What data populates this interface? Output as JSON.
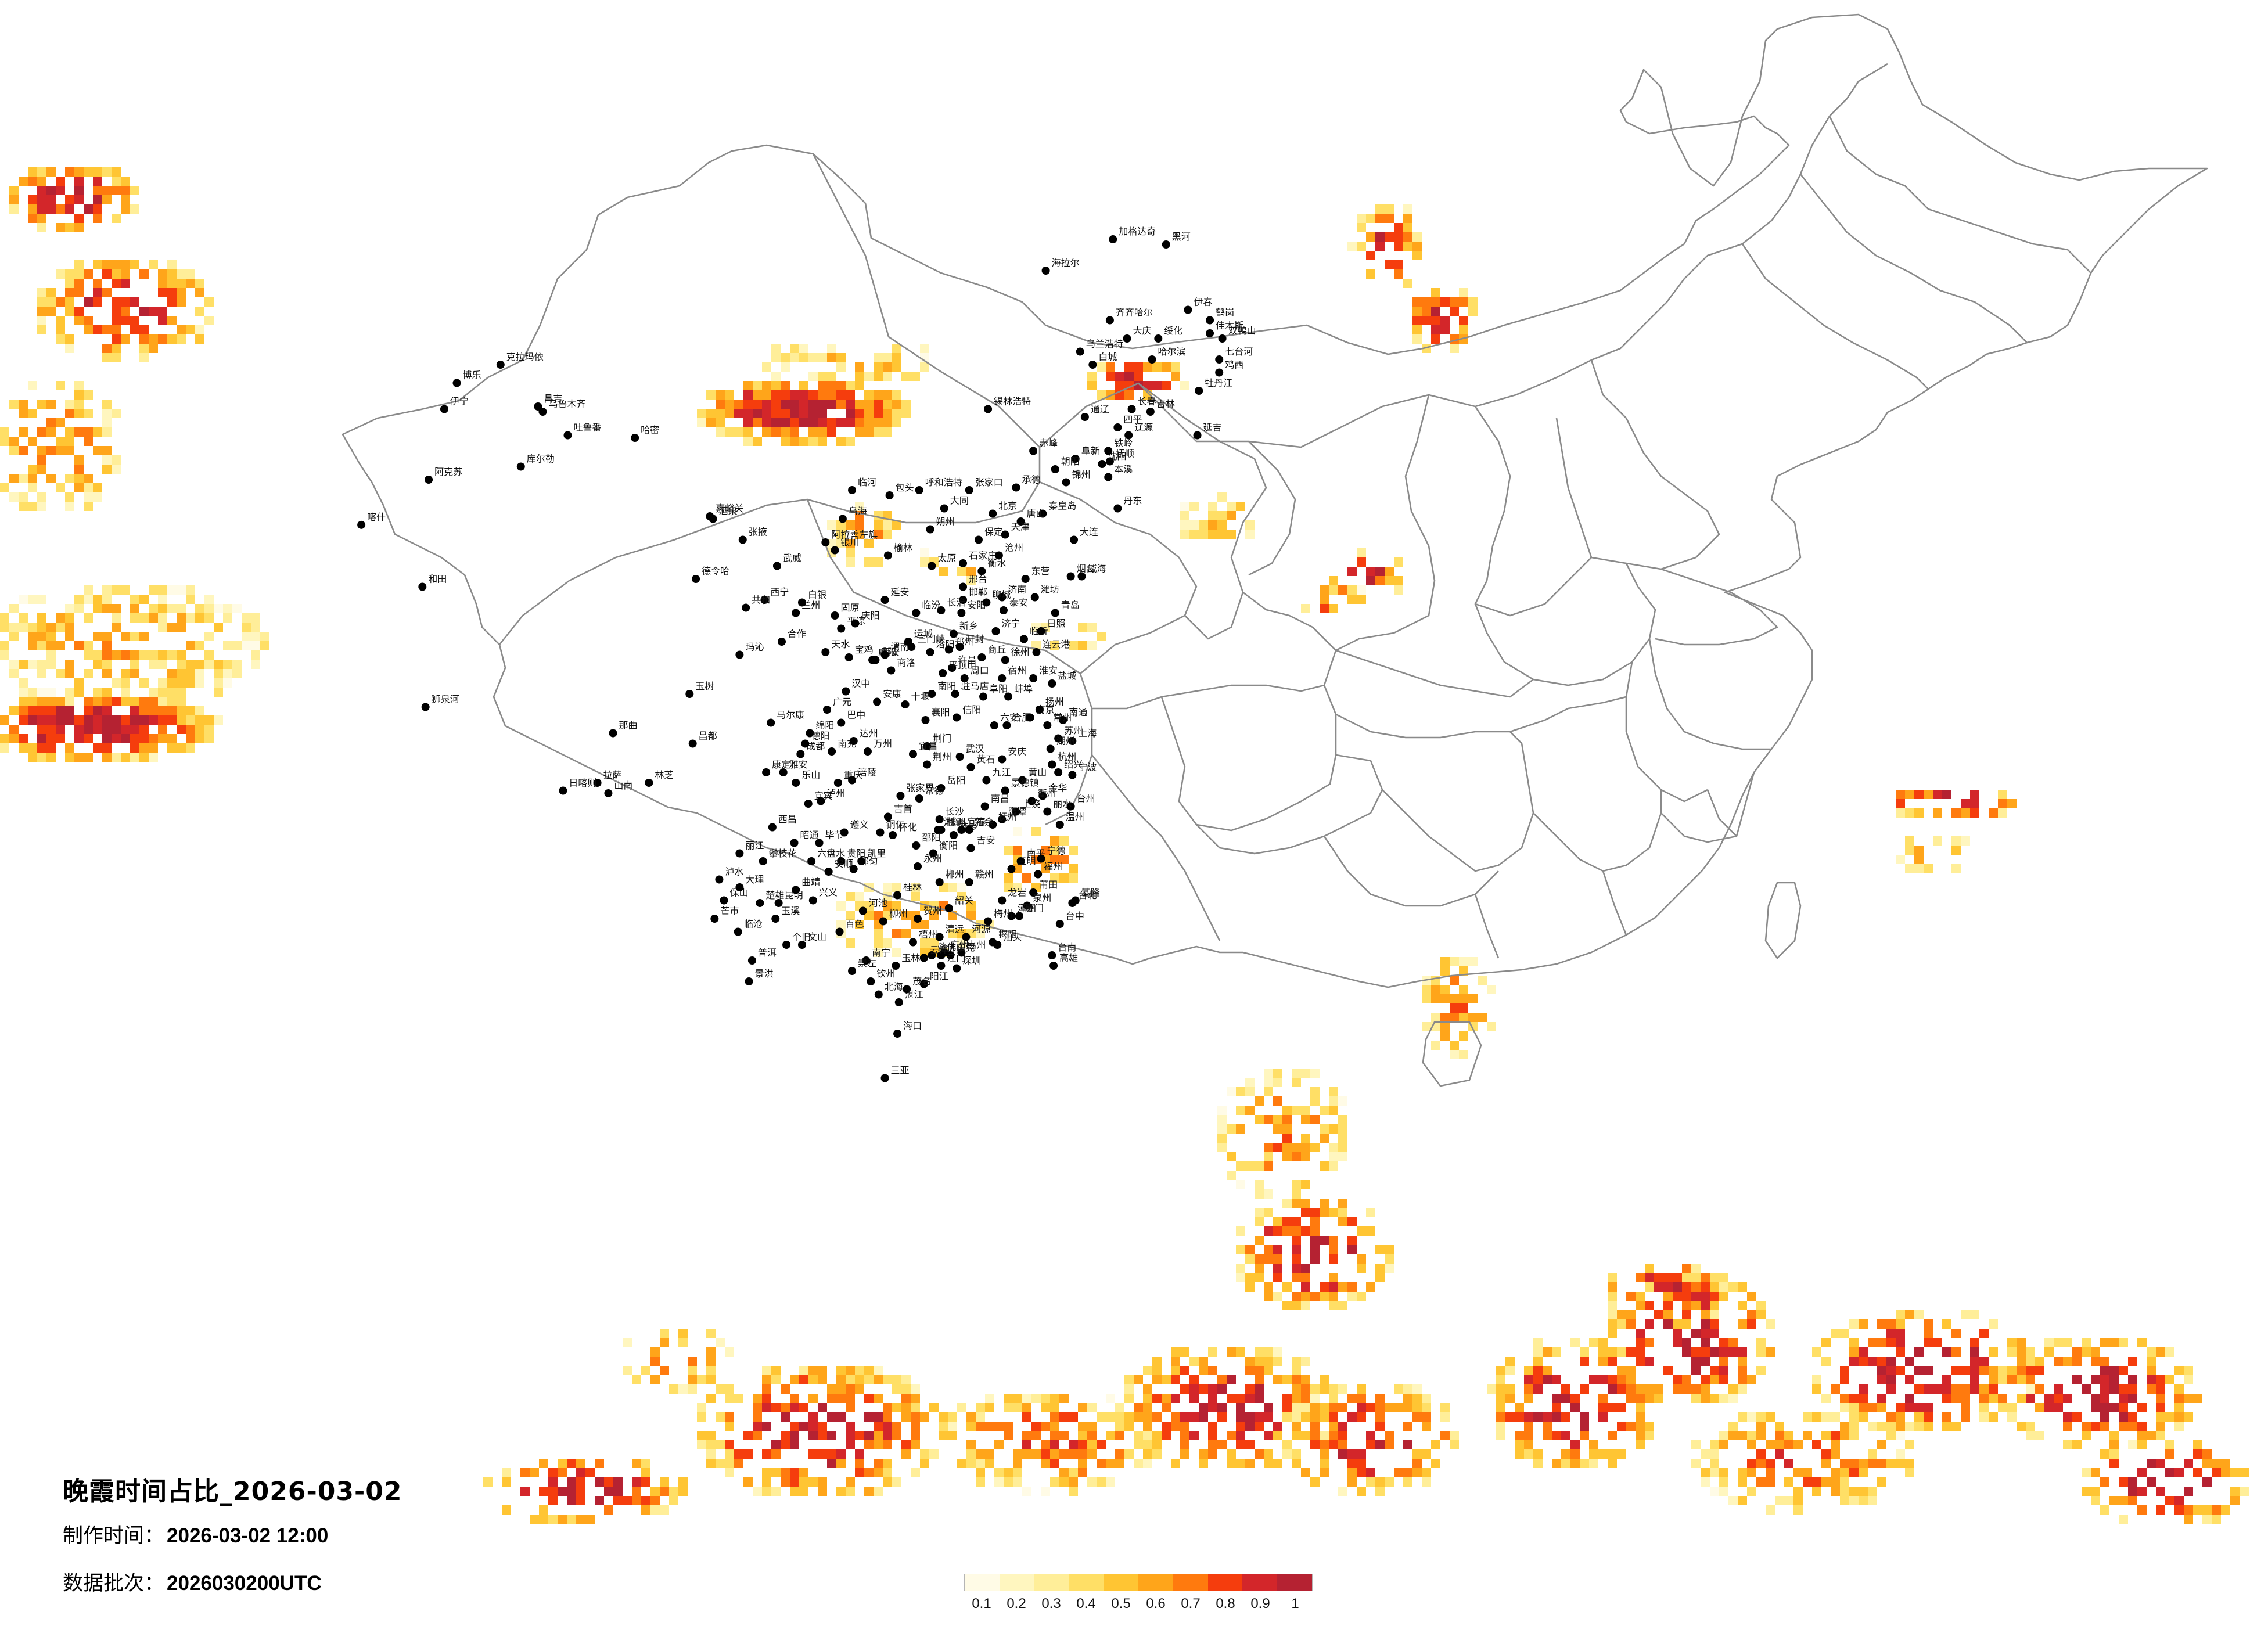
{
  "title": "晚霞时间占比_2026-03-02",
  "made_time_label": "制作时间：",
  "made_time_value": "2026-03-02 12:00",
  "batch_label": "数据批次：",
  "batch_value": "2026030200UTC",
  "legend": {
    "ticks": [
      "0.1",
      "0.2",
      "0.3",
      "0.4",
      "0.5",
      "0.6",
      "0.7",
      "0.8",
      "0.9",
      "1"
    ],
    "colors": [
      "#fffbe6",
      "#fff6bf",
      "#ffee99",
      "#ffdf66",
      "#ffc533",
      "#ffa51a",
      "#ff7a0e",
      "#f53d0d",
      "#d3262a",
      "#b52232"
    ]
  },
  "layers": [
    "sunset-ratio-raster",
    "province-boundaries",
    "city-markers"
  ],
  "cities": [
    {
      "name": "加格达奇",
      "lon": 124.1,
      "lat": 50.4
    },
    {
      "name": "黑河",
      "lon": 127.5,
      "lat": 50.2
    },
    {
      "name": "海拉尔",
      "lon": 119.8,
      "lat": 49.2
    },
    {
      "name": "伊春",
      "lon": 128.9,
      "lat": 47.7
    },
    {
      "name": "鹤岗",
      "lon": 130.3,
      "lat": 47.3
    },
    {
      "name": "佳木斯",
      "lon": 130.3,
      "lat": 46.8
    },
    {
      "name": "齐齐哈尔",
      "lon": 123.9,
      "lat": 47.3
    },
    {
      "name": "双鸭山",
      "lon": 131.1,
      "lat": 46.6
    },
    {
      "name": "绥化",
      "lon": 127.0,
      "lat": 46.6
    },
    {
      "name": "大庆",
      "lon": 125.0,
      "lat": 46.6
    },
    {
      "name": "七台河",
      "lon": 130.9,
      "lat": 45.8
    },
    {
      "name": "鸡西",
      "lon": 130.9,
      "lat": 45.3
    },
    {
      "name": "哈尔滨",
      "lon": 126.6,
      "lat": 45.8
    },
    {
      "name": "乌兰浩特",
      "lon": 122.0,
      "lat": 46.1
    },
    {
      "name": "白城",
      "lon": 122.8,
      "lat": 45.6
    },
    {
      "name": "牡丹江",
      "lon": 129.6,
      "lat": 44.6
    },
    {
      "name": "锡林浩特",
      "lon": 116.1,
      "lat": 43.9
    },
    {
      "name": "长春",
      "lon": 125.3,
      "lat": 43.9
    },
    {
      "name": "吉林",
      "lon": 126.5,
      "lat": 43.8
    },
    {
      "name": "通辽",
      "lon": 122.3,
      "lat": 43.6
    },
    {
      "name": "四平",
      "lon": 124.4,
      "lat": 43.2
    },
    {
      "name": "辽源",
      "lon": 125.1,
      "lat": 42.9
    },
    {
      "name": "延吉",
      "lon": 129.5,
      "lat": 42.9
    },
    {
      "name": "铁岭",
      "lon": 123.8,
      "lat": 42.3
    },
    {
      "name": "抚顺",
      "lon": 123.9,
      "lat": 41.9
    },
    {
      "name": "沈阳",
      "lon": 123.4,
      "lat": 41.8
    },
    {
      "name": "赤峰",
      "lon": 119.0,
      "lat": 42.3
    },
    {
      "name": "阜新",
      "lon": 121.7,
      "lat": 42.0
    },
    {
      "name": "本溪",
      "lon": 123.8,
      "lat": 41.3
    },
    {
      "name": "丹东",
      "lon": 124.4,
      "lat": 40.1
    },
    {
      "name": "锦州",
      "lon": 121.1,
      "lat": 41.1
    },
    {
      "name": "朝阳",
      "lon": 120.4,
      "lat": 41.6
    },
    {
      "name": "承德",
      "lon": 117.9,
      "lat": 40.9
    },
    {
      "name": "张家口",
      "lon": 114.9,
      "lat": 40.8
    },
    {
      "name": "北京",
      "lon": 116.4,
      "lat": 39.9
    },
    {
      "name": "秦皇岛",
      "lon": 119.6,
      "lat": 39.9
    },
    {
      "name": "唐山",
      "lon": 118.2,
      "lat": 39.6
    },
    {
      "name": "天津",
      "lon": 117.2,
      "lat": 39.1
    },
    {
      "name": "大连",
      "lon": 121.6,
      "lat": 38.9
    },
    {
      "name": "呼和浩特",
      "lon": 111.7,
      "lat": 40.8
    },
    {
      "name": "包头",
      "lon": 109.8,
      "lat": 40.6
    },
    {
      "name": "临河",
      "lon": 107.4,
      "lat": 40.8
    },
    {
      "name": "乌海",
      "lon": 106.8,
      "lat": 39.7
    },
    {
      "name": "大同",
      "lon": 113.3,
      "lat": 40.1
    },
    {
      "name": "朔州",
      "lon": 112.4,
      "lat": 39.3
    },
    {
      "name": "保定",
      "lon": 115.5,
      "lat": 38.9
    },
    {
      "name": "石家庄",
      "lon": 114.5,
      "lat": 38.0
    },
    {
      "name": "太原",
      "lon": 112.5,
      "lat": 37.9
    },
    {
      "name": "衡水",
      "lon": 115.7,
      "lat": 37.7
    },
    {
      "name": "沧州",
      "lon": 116.8,
      "lat": 38.3
    },
    {
      "name": "东营",
      "lon": 118.5,
      "lat": 37.4
    },
    {
      "name": "烟台",
      "lon": 121.4,
      "lat": 37.5
    },
    {
      "name": "威海",
      "lon": 122.1,
      "lat": 37.5
    },
    {
      "name": "潍坊",
      "lon": 119.1,
      "lat": 36.7
    },
    {
      "name": "济南",
      "lon": 117.0,
      "lat": 36.7
    },
    {
      "name": "青岛",
      "lon": 120.4,
      "lat": 36.1
    },
    {
      "name": "邢台",
      "lon": 114.5,
      "lat": 37.1
    },
    {
      "name": "邯郸",
      "lon": 114.5,
      "lat": 36.6
    },
    {
      "name": "长治",
      "lon": 113.1,
      "lat": 36.2
    },
    {
      "name": "临汾",
      "lon": 111.5,
      "lat": 36.1
    },
    {
      "name": "延安",
      "lon": 109.5,
      "lat": 36.6
    },
    {
      "name": "榆林",
      "lon": 109.7,
      "lat": 38.3
    },
    {
      "name": "银川",
      "lon": 106.3,
      "lat": 38.5
    },
    {
      "name": "阿拉善左旗",
      "lon": 105.7,
      "lat": 38.8
    },
    {
      "name": "武威",
      "lon": 102.6,
      "lat": 37.9
    },
    {
      "name": "张掖",
      "lon": 100.4,
      "lat": 38.9
    },
    {
      "name": "酒泉",
      "lon": 98.5,
      "lat": 39.7
    },
    {
      "name": "嘉峪关",
      "lon": 98.3,
      "lat": 39.8
    },
    {
      "name": "西宁",
      "lon": 101.8,
      "lat": 36.6
    },
    {
      "name": "兰州",
      "lon": 103.8,
      "lat": 36.1
    },
    {
      "name": "白银",
      "lon": 104.2,
      "lat": 36.5
    },
    {
      "name": "固原",
      "lon": 106.3,
      "lat": 36.0
    },
    {
      "name": "平凉",
      "lon": 106.7,
      "lat": 35.5
    },
    {
      "name": "庆阳",
      "lon": 107.6,
      "lat": 35.7
    },
    {
      "name": "天水",
      "lon": 105.7,
      "lat": 34.6
    },
    {
      "name": "宝鸡",
      "lon": 107.2,
      "lat": 34.4
    },
    {
      "name": "咸阳",
      "lon": 108.7,
      "lat": 34.3
    },
    {
      "name": "西安",
      "lon": 108.9,
      "lat": 34.3
    },
    {
      "name": "渭南",
      "lon": 109.5,
      "lat": 34.5
    },
    {
      "name": "运城",
      "lon": 111.0,
      "lat": 35.0
    },
    {
      "name": "三门峡",
      "lon": 111.2,
      "lat": 34.8
    },
    {
      "name": "洛阳",
      "lon": 112.4,
      "lat": 34.6
    },
    {
      "name": "郑州",
      "lon": 113.6,
      "lat": 34.7
    },
    {
      "name": "开封",
      "lon": 114.3,
      "lat": 34.8
    },
    {
      "name": "新乡",
      "lon": 113.9,
      "lat": 35.3
    },
    {
      "name": "安阳",
      "lon": 114.4,
      "lat": 36.1
    },
    {
      "name": "聊城",
      "lon": 116.0,
      "lat": 36.5
    },
    {
      "name": "泰安",
      "lon": 117.1,
      "lat": 36.2
    },
    {
      "name": "济宁",
      "lon": 116.6,
      "lat": 35.4
    },
    {
      "name": "临沂",
      "lon": 118.4,
      "lat": 35.1
    },
    {
      "name": "日照",
      "lon": 119.5,
      "lat": 35.4
    },
    {
      "name": "连云港",
      "lon": 119.2,
      "lat": 34.6
    },
    {
      "name": "徐州",
      "lon": 117.2,
      "lat": 34.3
    },
    {
      "name": "商丘",
      "lon": 115.7,
      "lat": 34.4
    },
    {
      "name": "许昌",
      "lon": 113.8,
      "lat": 34.0
    },
    {
      "name": "平顶山",
      "lon": 113.2,
      "lat": 33.8
    },
    {
      "name": "周口",
      "lon": 114.6,
      "lat": 33.6
    },
    {
      "name": "驻马店",
      "lon": 114.0,
      "lat": 33.0
    },
    {
      "name": "南阳",
      "lon": 112.5,
      "lat": 33.0
    },
    {
      "name": "阜阳",
      "lon": 115.8,
      "lat": 32.9
    },
    {
      "name": "宿州",
      "lon": 117.0,
      "lat": 33.6
    },
    {
      "name": "淮安",
      "lon": 119.0,
      "lat": 33.6
    },
    {
      "name": "盐城",
      "lon": 120.2,
      "lat": 33.4
    },
    {
      "name": "蚌埠",
      "lon": 117.4,
      "lat": 32.9
    },
    {
      "name": "信阳",
      "lon": 114.1,
      "lat": 32.1
    },
    {
      "name": "六安",
      "lon": 116.5,
      "lat": 31.8
    },
    {
      "name": "合肥",
      "lon": 117.3,
      "lat": 31.8
    },
    {
      "name": "南京",
      "lon": 118.8,
      "lat": 32.1
    },
    {
      "name": "扬州",
      "lon": 119.4,
      "lat": 32.4
    },
    {
      "name": "南通",
      "lon": 120.9,
      "lat": 32.0
    },
    {
      "name": "常州",
      "lon": 119.9,
      "lat": 31.8
    },
    {
      "name": "苏州",
      "lon": 120.6,
      "lat": 31.3
    },
    {
      "name": "上海",
      "lon": 121.5,
      "lat": 31.2
    },
    {
      "name": "湖州",
      "lon": 120.1,
      "lat": 30.9
    },
    {
      "name": "杭州",
      "lon": 120.2,
      "lat": 30.3
    },
    {
      "name": "宁波",
      "lon": 121.5,
      "lat": 29.9
    },
    {
      "name": "绍兴",
      "lon": 120.6,
      "lat": 30.0
    },
    {
      "name": "金华",
      "lon": 119.6,
      "lat": 29.1
    },
    {
      "name": "衢州",
      "lon": 118.9,
      "lat": 28.9
    },
    {
      "name": "台州",
      "lon": 121.4,
      "lat": 28.7
    },
    {
      "name": "丽水",
      "lon": 119.9,
      "lat": 28.5
    },
    {
      "name": "温州",
      "lon": 120.7,
      "lat": 28.0
    },
    {
      "name": "安庆",
      "lon": 117.0,
      "lat": 30.5
    },
    {
      "name": "黄山",
      "lon": 118.3,
      "lat": 29.7
    },
    {
      "name": "景德镇",
      "lon": 117.2,
      "lat": 29.3
    },
    {
      "name": "九江",
      "lon": 116.0,
      "lat": 29.7
    },
    {
      "name": "南昌",
      "lon": 115.9,
      "lat": 28.7
    },
    {
      "name": "上饶",
      "lon": 117.9,
      "lat": 28.5
    },
    {
      "name": "鹰潭",
      "lon": 117.0,
      "lat": 28.2
    },
    {
      "name": "抚州",
      "lon": 116.4,
      "lat": 28.0
    },
    {
      "name": "武汉",
      "lon": 114.3,
      "lat": 30.6
    },
    {
      "name": "黄石",
      "lon": 115.0,
      "lat": 30.2
    },
    {
      "name": "荆门",
      "lon": 112.2,
      "lat": 31.0
    },
    {
      "name": "襄阳",
      "lon": 112.1,
      "lat": 32.0
    },
    {
      "name": "十堰",
      "lon": 110.8,
      "lat": 32.6
    },
    {
      "name": "宜昌",
      "lon": 111.3,
      "lat": 30.7
    },
    {
      "name": "荆州",
      "lon": 112.2,
      "lat": 30.3
    },
    {
      "name": "岳阳",
      "lon": 113.1,
      "lat": 29.4
    },
    {
      "name": "常德",
      "lon": 111.7,
      "lat": 29.0
    },
    {
      "name": "长沙",
      "lon": 113.0,
      "lat": 28.2
    },
    {
      "name": "湘潭",
      "lon": 112.9,
      "lat": 27.8
    },
    {
      "name": "株洲",
      "lon": 113.1,
      "lat": 27.8
    },
    {
      "name": "衡阳",
      "lon": 112.6,
      "lat": 26.9
    },
    {
      "name": "邵阳",
      "lon": 111.5,
      "lat": 27.2
    },
    {
      "name": "怀化",
      "lon": 110.0,
      "lat": 27.6
    },
    {
      "name": "张家界",
      "lon": 110.5,
      "lat": 29.1
    },
    {
      "name": "吉首",
      "lon": 109.7,
      "lat": 28.3
    },
    {
      "name": "郴州",
      "lon": 113.0,
      "lat": 25.8
    },
    {
      "name": "永州",
      "lon": 111.6,
      "lat": 26.4
    },
    {
      "name": "萍乡",
      "lon": 113.9,
      "lat": 27.6
    },
    {
      "name": "新余",
      "lon": 114.9,
      "lat": 27.8
    },
    {
      "name": "宜春",
      "lon": 114.4,
      "lat": 27.8
    },
    {
      "name": "吉安",
      "lon": 115.0,
      "lat": 27.1
    },
    {
      "name": "赣州",
      "lon": 114.9,
      "lat": 25.8
    },
    {
      "name": "南平",
      "lon": 118.2,
      "lat": 26.6
    },
    {
      "name": "三明",
      "lon": 117.6,
      "lat": 26.3
    },
    {
      "name": "宁德",
      "lon": 119.5,
      "lat": 26.7
    },
    {
      "name": "福州",
      "lon": 119.3,
      "lat": 26.1
    },
    {
      "name": "莆田",
      "lon": 119.0,
      "lat": 25.4
    },
    {
      "name": "泉州",
      "lon": 118.6,
      "lat": 24.9
    },
    {
      "name": "龙岩",
      "lon": 117.0,
      "lat": 25.1
    },
    {
      "name": "厦门",
      "lon": 118.1,
      "lat": 24.5
    },
    {
      "name": "漳州",
      "lon": 117.6,
      "lat": 24.5
    },
    {
      "name": "台北",
      "lon": 121.5,
      "lat": 25.0
    },
    {
      "name": "基隆",
      "lon": 121.7,
      "lat": 25.1
    },
    {
      "name": "台中",
      "lon": 120.7,
      "lat": 24.2
    },
    {
      "name": "台南",
      "lon": 120.2,
      "lat": 23.0
    },
    {
      "name": "高雄",
      "lon": 120.3,
      "lat": 22.6
    },
    {
      "name": "梅州",
      "lon": 116.1,
      "lat": 24.3
    },
    {
      "name": "汕头",
      "lon": 116.7,
      "lat": 23.4
    },
    {
      "name": "揭阳",
      "lon": 116.4,
      "lat": 23.5
    },
    {
      "name": "惠州",
      "lon": 114.4,
      "lat": 23.1
    },
    {
      "name": "河源",
      "lon": 114.7,
      "lat": 23.7
    },
    {
      "name": "韶关",
      "lon": 113.6,
      "lat": 24.8
    },
    {
      "name": "清远",
      "lon": 113.0,
      "lat": 23.7
    },
    {
      "name": "广州",
      "lon": 113.3,
      "lat": 23.1
    },
    {
      "name": "东莞",
      "lon": 113.7,
      "lat": 23.0
    },
    {
      "name": "深圳",
      "lon": 114.1,
      "lat": 22.5
    },
    {
      "name": "佛山",
      "lon": 113.1,
      "lat": 23.0
    },
    {
      "name": "江门",
      "lon": 113.1,
      "lat": 22.6
    },
    {
      "name": "肇庆",
      "lon": 112.5,
      "lat": 23.0
    },
    {
      "name": "云浮",
      "lon": 112.0,
      "lat": 22.9
    },
    {
      "name": "阳江",
      "lon": 112.0,
      "lat": 21.9
    },
    {
      "name": "茂名",
      "lon": 110.9,
      "lat": 21.7
    },
    {
      "name": "湛江",
      "lon": 110.4,
      "lat": 21.2
    },
    {
      "name": "北海",
      "lon": 109.1,
      "lat": 21.5
    },
    {
      "name": "钦州",
      "lon": 108.6,
      "lat": 22.0
    },
    {
      "name": "南宁",
      "lon": 108.3,
      "lat": 22.8
    },
    {
      "name": "玉林",
      "lon": 110.2,
      "lat": 22.6
    },
    {
      "name": "梧州",
      "lon": 111.3,
      "lat": 23.5
    },
    {
      "name": "贺州",
      "lon": 111.6,
      "lat": 24.4
    },
    {
      "name": "桂林",
      "lon": 110.3,
      "lat": 25.3
    },
    {
      "name": "柳州",
      "lon": 109.4,
      "lat": 24.3
    },
    {
      "name": "河池",
      "lon": 108.1,
      "lat": 24.7
    },
    {
      "name": "百色",
      "lon": 106.6,
      "lat": 23.9
    },
    {
      "name": "崇左",
      "lon": 107.4,
      "lat": 22.4
    },
    {
      "name": "海口",
      "lon": 110.3,
      "lat": 20.0
    },
    {
      "name": "三亚",
      "lon": 109.5,
      "lat": 18.3
    },
    {
      "name": "贵阳",
      "lon": 106.7,
      "lat": 26.6
    },
    {
      "name": "遵义",
      "lon": 106.9,
      "lat": 27.7
    },
    {
      "name": "安顺",
      "lon": 105.9,
      "lat": 26.2
    },
    {
      "name": "都匀",
      "lon": 107.5,
      "lat": 26.3
    },
    {
      "name": "凯里",
      "lon": 108.0,
      "lat": 26.6
    },
    {
      "name": "铜仁",
      "lon": 109.2,
      "lat": 27.7
    },
    {
      "name": "兴义",
      "lon": 104.9,
      "lat": 25.1
    },
    {
      "name": "六盘水",
      "lon": 104.8,
      "lat": 26.6
    },
    {
      "name": "毕节",
      "lon": 105.3,
      "lat": 27.3
    },
    {
      "name": "昆明",
      "lon": 102.7,
      "lat": 25.0
    },
    {
      "name": "曲靖",
      "lon": 103.8,
      "lat": 25.5
    },
    {
      "name": "玉溪",
      "lon": 102.5,
      "lat": 24.4
    },
    {
      "name": "个旧",
      "lon": 103.2,
      "lat": 23.4
    },
    {
      "name": "文山",
      "lon": 104.2,
      "lat": 23.4
    },
    {
      "name": "普洱",
      "lon": 101.0,
      "lat": 22.8
    },
    {
      "name": "景洪",
      "lon": 100.8,
      "lat": 22.0
    },
    {
      "name": "临沧",
      "lon": 100.1,
      "lat": 23.9
    },
    {
      "name": "保山",
      "lon": 99.2,
      "lat": 25.1
    },
    {
      "name": "大理",
      "lon": 100.2,
      "lat": 25.6
    },
    {
      "name": "丽江",
      "lon": 100.2,
      "lat": 26.9
    },
    {
      "name": "楚雄",
      "lon": 101.5,
      "lat": 25.0
    },
    {
      "name": "泸水",
      "lon": 98.9,
      "lat": 25.9
    },
    {
      "name": "芒市",
      "lon": 98.6,
      "lat": 24.4
    },
    {
      "name": "昭通",
      "lon": 103.7,
      "lat": 27.3
    },
    {
      "name": "西昌",
      "lon": 102.3,
      "lat": 27.9
    },
    {
      "name": "攀枝花",
      "lon": 101.7,
      "lat": 26.6
    },
    {
      "name": "宜宾",
      "lon": 104.6,
      "lat": 28.8
    },
    {
      "name": "泸州",
      "lon": 105.4,
      "lat": 28.9
    },
    {
      "name": "乐山",
      "lon": 103.8,
      "lat": 29.6
    },
    {
      "name": "雅安",
      "lon": 103.0,
      "lat": 30.0
    },
    {
      "name": "成都",
      "lon": 104.1,
      "lat": 30.7
    },
    {
      "name": "绵阳",
      "lon": 104.7,
      "lat": 31.5
    },
    {
      "name": "德阳",
      "lon": 104.4,
      "lat": 31.1
    },
    {
      "name": "南充",
      "lon": 106.1,
      "lat": 30.8
    },
    {
      "name": "达州",
      "lon": 107.5,
      "lat": 31.2
    },
    {
      "name": "广元",
      "lon": 105.8,
      "lat": 32.4
    },
    {
      "name": "巴中",
      "lon": 106.7,
      "lat": 31.9
    },
    {
      "name": "重庆",
      "lon": 106.5,
      "lat": 29.6
    },
    {
      "name": "万州",
      "lon": 108.4,
      "lat": 30.8
    },
    {
      "name": "涪陵",
      "lon": 107.4,
      "lat": 29.7
    },
    {
      "name": "汉中",
      "lon": 107.0,
      "lat": 33.1
    },
    {
      "name": "安康",
      "lon": 109.0,
      "lat": 32.7
    },
    {
      "name": "商洛",
      "lon": 109.9,
      "lat": 33.9
    },
    {
      "name": "康定",
      "lon": 101.9,
      "lat": 30.0
    },
    {
      "name": "马尔康",
      "lon": 102.2,
      "lat": 31.9
    },
    {
      "name": "合作",
      "lon": 102.9,
      "lat": 35.0
    },
    {
      "name": "玛沁",
      "lon": 100.2,
      "lat": 34.5
    },
    {
      "name": "共和",
      "lon": 100.6,
      "lat": 36.3
    },
    {
      "name": "德令哈",
      "lon": 97.4,
      "lat": 37.4
    },
    {
      "name": "玉树",
      "lon": 97.0,
      "lat": 33.0
    },
    {
      "name": "昌都",
      "lon": 97.2,
      "lat": 31.1
    },
    {
      "name": "那曲",
      "lon": 92.1,
      "lat": 31.5
    },
    {
      "name": "拉萨",
      "lon": 91.1,
      "lat": 29.6
    },
    {
      "name": "林芝",
      "lon": 94.4,
      "lat": 29.6
    },
    {
      "name": "山南",
      "lon": 91.8,
      "lat": 29.2
    },
    {
      "name": "日喀则",
      "lon": 88.9,
      "lat": 29.3
    },
    {
      "name": "狮泉河",
      "lon": 80.1,
      "lat": 32.5
    },
    {
      "name": "和田",
      "lon": 79.9,
      "lat": 37.1
    },
    {
      "name": "喀什",
      "lon": 75.99,
      "lat": 39.47
    },
    {
      "name": "阿克苏",
      "lon": 80.3,
      "lat": 41.2
    },
    {
      "name": "伊宁",
      "lon": 81.3,
      "lat": 43.9
    },
    {
      "name": "博乐",
      "lon": 82.1,
      "lat": 44.9
    },
    {
      "name": "克拉玛依",
      "lon": 84.9,
      "lat": 45.6
    },
    {
      "name": "昌吉",
      "lon": 87.3,
      "lat": 44.0
    },
    {
      "name": "乌鲁木齐",
      "lon": 87.6,
      "lat": 43.8
    },
    {
      "name": "吐鲁番",
      "lon": 89.2,
      "lat": 42.9
    },
    {
      "name": "哈密",
      "lon": 93.5,
      "lat": 42.8
    },
    {
      "name": "库尔勒",
      "lon": 86.2,
      "lat": 41.7
    }
  ]
}
